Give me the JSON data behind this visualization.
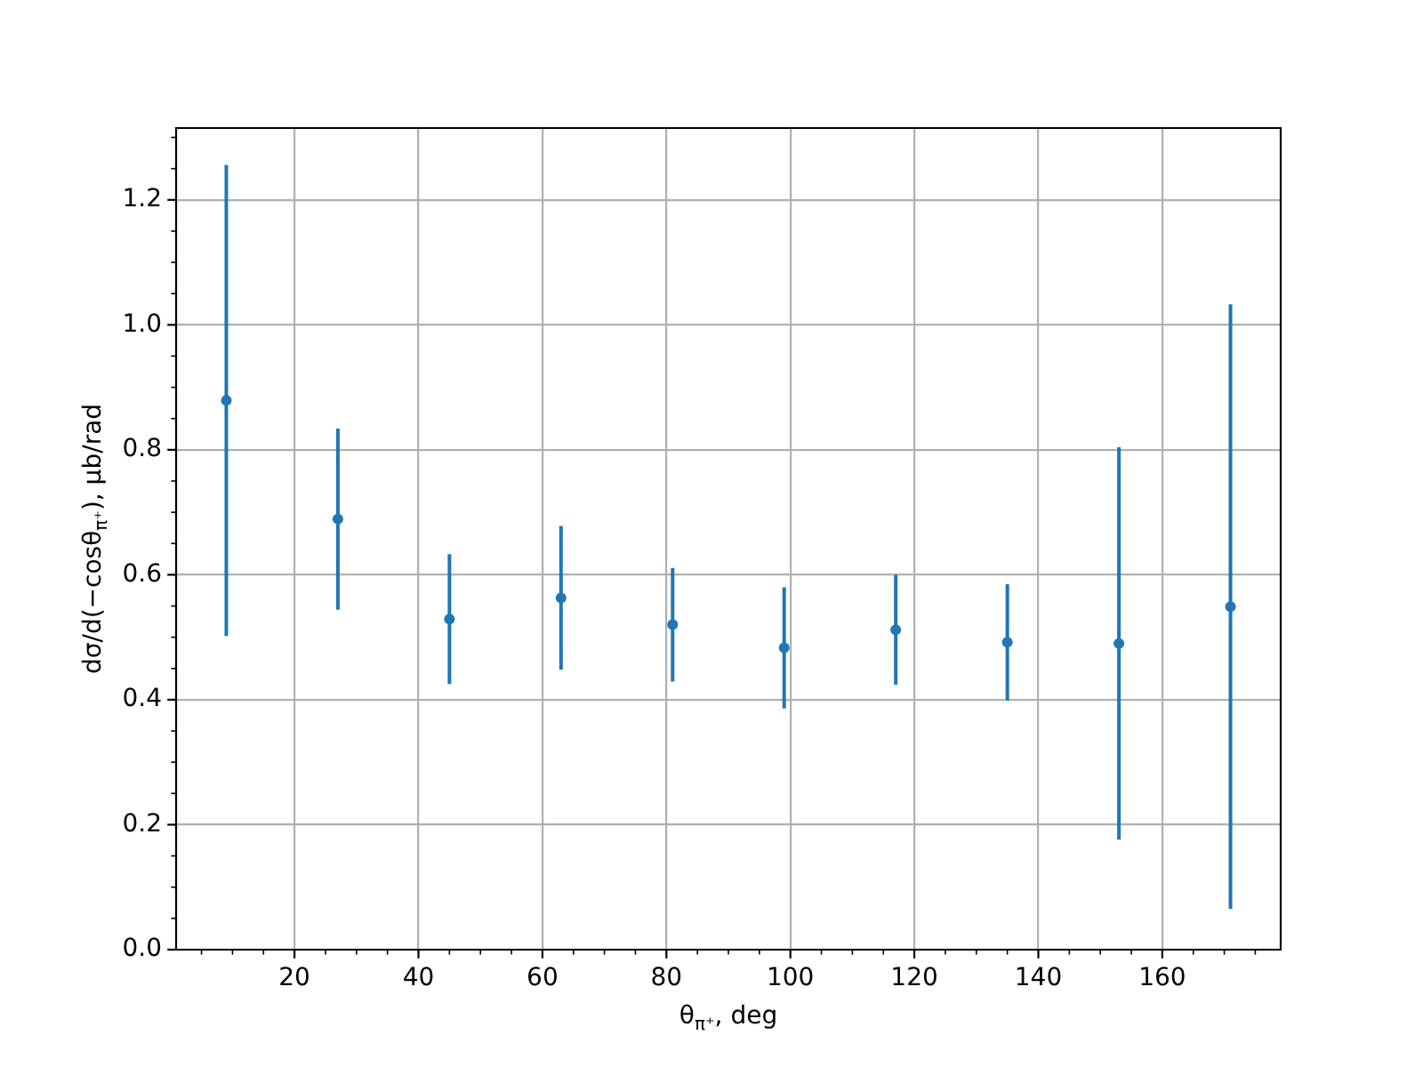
{
  "chart_data": {
    "type": "scatter",
    "xlabel": "θ$_{π⁺}$, deg",
    "ylabel": "dσ/d(−cosθ$_{π⁺}$), μb/rad",
    "x": [
      9,
      27,
      45,
      63,
      81,
      99,
      117,
      135,
      153,
      171
    ],
    "values": [
      0.879,
      0.689,
      0.529,
      0.563,
      0.52,
      0.483,
      0.512,
      0.492,
      0.49,
      0.549
    ],
    "errors": [
      0.377,
      0.145,
      0.104,
      0.115,
      0.091,
      0.097,
      0.088,
      0.093,
      0.314,
      0.484
    ],
    "color": "#1f77b4",
    "marker": "circle",
    "grid": true,
    "xlim": [
      0.9,
      179.1
    ],
    "xticks": [
      {
        "value": 5,
        "label": null
      },
      {
        "value": 10,
        "label": null
      },
      {
        "value": 15,
        "label": null
      },
      20,
      {
        "value": 25,
        "label": null
      },
      {
        "value": 30,
        "label": null
      },
      {
        "value": 35,
        "label": null
      },
      40,
      {
        "value": 45,
        "label": null
      },
      {
        "value": 50,
        "label": null
      },
      {
        "value": 55,
        "label": null
      },
      60,
      {
        "value": 65,
        "label": null
      },
      {
        "value": 70,
        "label": null
      },
      {
        "value": 75,
        "label": null
      },
      80,
      {
        "value": 85,
        "label": null
      },
      {
        "value": 90,
        "label": null
      },
      {
        "value": 95,
        "label": null
      },
      100,
      {
        "value": 105,
        "label": null
      },
      {
        "value": 110,
        "label": null
      },
      {
        "value": 115,
        "label": null
      },
      120,
      {
        "value": 125,
        "label": null
      },
      {
        "value": 130,
        "label": null
      },
      {
        "value": 135,
        "label": null
      },
      140,
      {
        "value": 145,
        "label": null
      },
      {
        "value": 150,
        "label": null
      },
      {
        "value": 155,
        "label": null
      },
      160,
      {
        "value": 165,
        "label": null
      },
      {
        "value": 170,
        "label": null
      },
      {
        "value": 175,
        "label": null
      }
    ],
    "ylim": [
      0,
      1.315
    ],
    "yticks": [
      {
        "value": 0,
        "label": "0.0"
      },
      {
        "value": 0.05,
        "label": null
      },
      {
        "value": 0.1,
        "label": null
      },
      {
        "value": 0.15,
        "label": null
      },
      0.2,
      {
        "value": 0.25,
        "label": null
      },
      {
        "value": 0.3,
        "label": null
      },
      {
        "value": 0.35,
        "label": null
      },
      0.4,
      {
        "value": 0.45,
        "label": null
      },
      {
        "value": 0.5,
        "label": null
      },
      {
        "value": 0.55,
        "label": null
      },
      0.6,
      {
        "value": 0.65,
        "label": null
      },
      {
        "value": 0.7,
        "label": null
      },
      {
        "value": 0.75,
        "label": null
      },
      0.8,
      {
        "value": 0.85,
        "label": null
      },
      {
        "value": 0.9,
        "label": null
      },
      {
        "value": 0.95,
        "label": null
      },
      {
        "value": 1,
        "label": "1.0"
      },
      {
        "value": 1.05,
        "label": null
      },
      {
        "value": 1.1,
        "label": null
      },
      {
        "value": 1.15,
        "label": null
      },
      1.2,
      {
        "value": 1.25,
        "label": null
      },
      {
        "value": 1.3,
        "label": null
      }
    ]
  }
}
